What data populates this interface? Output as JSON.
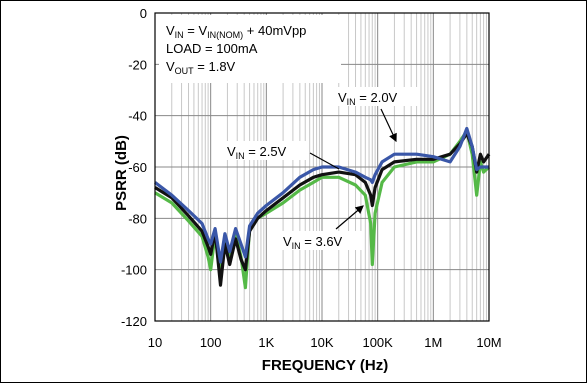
{
  "chart_data": {
    "type": "line",
    "xlabel": "FREQUENCY (Hz)",
    "ylabel": "PSRR (dB)",
    "xscale": "log",
    "xlim": [
      10,
      10000000
    ],
    "ylim": [
      -120,
      0
    ],
    "yticks": [
      "0",
      "-20",
      "-40",
      "-60",
      "-80",
      "-100",
      "-120"
    ],
    "xticks": [
      "10",
      "100",
      "1K",
      "10K",
      "100K",
      "1M",
      "10M"
    ],
    "grid": true,
    "conditions": {
      "line1_main": "V",
      "line1_sub": "IN",
      "line1_mid": " = V",
      "line1_sub2": "IN(NOM)",
      "line1_tail": " + 40mVpp",
      "line2": "LOAD = 100mA",
      "line3_main": "V",
      "line3_sub": "OUT",
      "line3_tail": " = 1.8V"
    },
    "series": [
      {
        "name": "VIN = 3.6V",
        "label_main": "V",
        "label_sub": "IN",
        "label_tail": " = 3.6V",
        "color": "#55b947",
        "points": [
          [
            10,
            -70
          ],
          [
            20,
            -74
          ],
          [
            40,
            -81
          ],
          [
            70,
            -87
          ],
          [
            90,
            -95
          ],
          [
            100,
            -100
          ],
          [
            120,
            -86
          ],
          [
            150,
            -103
          ],
          [
            180,
            -87
          ],
          [
            220,
            -95
          ],
          [
            280,
            -86
          ],
          [
            350,
            -95
          ],
          [
            420,
            -107
          ],
          [
            500,
            -84
          ],
          [
            700,
            -80
          ],
          [
            1000,
            -78
          ],
          [
            2000,
            -74
          ],
          [
            4000,
            -69
          ],
          [
            7000,
            -66
          ],
          [
            10000,
            -64
          ],
          [
            20000,
            -64
          ],
          [
            40000,
            -67
          ],
          [
            60000,
            -71
          ],
          [
            75000,
            -82
          ],
          [
            80000,
            -98
          ],
          [
            90000,
            -78
          ],
          [
            120000,
            -66
          ],
          [
            200000,
            -60
          ],
          [
            500000,
            -58
          ],
          [
            1000000,
            -58
          ],
          [
            2000000,
            -55
          ],
          [
            3000000,
            -50
          ],
          [
            4000000,
            -46
          ],
          [
            5000000,
            -55
          ],
          [
            6000000,
            -71
          ],
          [
            7000000,
            -58
          ],
          [
            8000000,
            -62
          ],
          [
            10000000,
            -60
          ]
        ]
      },
      {
        "name": "VIN = 2.5V",
        "label_main": "V",
        "label_sub": "IN",
        "label_tail": " = 2.5V",
        "color": "#111111",
        "points": [
          [
            10,
            -68
          ],
          [
            20,
            -72
          ],
          [
            40,
            -79
          ],
          [
            70,
            -85
          ],
          [
            90,
            -91
          ],
          [
            100,
            -94
          ],
          [
            120,
            -85
          ],
          [
            150,
            -106
          ],
          [
            180,
            -90
          ],
          [
            220,
            -98
          ],
          [
            280,
            -88
          ],
          [
            350,
            -96
          ],
          [
            420,
            -100
          ],
          [
            500,
            -85
          ],
          [
            700,
            -80
          ],
          [
            1000,
            -77
          ],
          [
            2000,
            -72
          ],
          [
            4000,
            -67
          ],
          [
            7000,
            -64
          ],
          [
            10000,
            -63
          ],
          [
            20000,
            -62
          ],
          [
            40000,
            -63
          ],
          [
            60000,
            -66
          ],
          [
            75000,
            -71
          ],
          [
            80000,
            -75
          ],
          [
            90000,
            -68
          ],
          [
            120000,
            -61
          ],
          [
            200000,
            -58
          ],
          [
            500000,
            -57
          ],
          [
            1000000,
            -57
          ],
          [
            2000000,
            -55
          ],
          [
            3000000,
            -51
          ],
          [
            4000000,
            -47
          ],
          [
            5000000,
            -52
          ],
          [
            6000000,
            -62
          ],
          [
            7000000,
            -55
          ],
          [
            8000000,
            -58
          ],
          [
            10000000,
            -55
          ]
        ]
      },
      {
        "name": "VIN = 2.0V",
        "label_main": "V",
        "label_sub": "IN",
        "label_tail": " = 2.0V",
        "color": "#3a57a8",
        "points": [
          [
            10,
            -66
          ],
          [
            20,
            -71
          ],
          [
            40,
            -77
          ],
          [
            70,
            -82
          ],
          [
            90,
            -88
          ],
          [
            100,
            -90
          ],
          [
            120,
            -84
          ],
          [
            150,
            -97
          ],
          [
            180,
            -86
          ],
          [
            220,
            -93
          ],
          [
            280,
            -84
          ],
          [
            350,
            -90
          ],
          [
            420,
            -95
          ],
          [
            500,
            -83
          ],
          [
            700,
            -78
          ],
          [
            1000,
            -75
          ],
          [
            2000,
            -70
          ],
          [
            4000,
            -64
          ],
          [
            7000,
            -61
          ],
          [
            10000,
            -60
          ],
          [
            20000,
            -60
          ],
          [
            40000,
            -62
          ],
          [
            60000,
            -64
          ],
          [
            75000,
            -65
          ],
          [
            80000,
            -66
          ],
          [
            90000,
            -63
          ],
          [
            120000,
            -58
          ],
          [
            200000,
            -55
          ],
          [
            500000,
            -55
          ],
          [
            1000000,
            -56
          ],
          [
            2000000,
            -58
          ],
          [
            3000000,
            -52
          ],
          [
            4000000,
            -45
          ],
          [
            5000000,
            -52
          ],
          [
            6000000,
            -61
          ],
          [
            7000000,
            -60
          ],
          [
            8000000,
            -60
          ],
          [
            10000000,
            -60
          ]
        ]
      }
    ]
  }
}
